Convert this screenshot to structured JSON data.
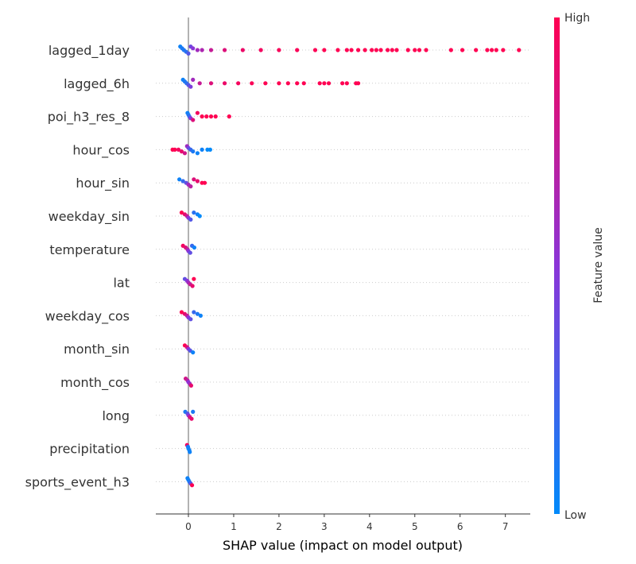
{
  "chart_data": {
    "type": "scatter",
    "subtype": "shap-beeswarm",
    "xlabel": "SHAP value (impact on model output)",
    "xlim": [
      -0.72,
      7.55
    ],
    "xticks": [
      0,
      1,
      2,
      3,
      4,
      5,
      6,
      7
    ],
    "zero_line": true,
    "grid": "dotted row guides",
    "colorbar": {
      "label": "Feature value",
      "high_label": "High",
      "low_label": "Low",
      "high_color": "#ff0052",
      "mid_color": "#8a35d8",
      "low_color": "#008afa",
      "position": "right"
    },
    "features": [
      {
        "name": "lagged_1day",
        "points": [
          {
            "x": -0.18,
            "v": 0.05
          },
          {
            "x": -0.14,
            "v": 0.1
          },
          {
            "x": -0.1,
            "v": 0.1
          },
          {
            "x": -0.05,
            "v": 0.15
          },
          {
            "x": 0.0,
            "v": 0.3
          },
          {
            "x": 0.05,
            "v": 0.4
          },
          {
            "x": 0.1,
            "v": 0.5
          },
          {
            "x": 0.2,
            "v": 0.6
          },
          {
            "x": 0.3,
            "v": 0.65
          },
          {
            "x": 0.5,
            "v": 0.75
          },
          {
            "x": 0.8,
            "v": 0.85
          },
          {
            "x": 1.2,
            "v": 0.92
          },
          {
            "x": 1.6,
            "v": 0.95
          },
          {
            "x": 2.0,
            "v": 0.97
          },
          {
            "x": 2.4,
            "v": 0.98
          },
          {
            "x": 2.8,
            "v": 0.99
          },
          {
            "x": 3.0,
            "v": 1
          },
          {
            "x": 3.3,
            "v": 1
          },
          {
            "x": 3.5,
            "v": 1
          },
          {
            "x": 3.6,
            "v": 1
          },
          {
            "x": 3.75,
            "v": 1
          },
          {
            "x": 3.9,
            "v": 1
          },
          {
            "x": 4.05,
            "v": 1
          },
          {
            "x": 4.15,
            "v": 1
          },
          {
            "x": 4.25,
            "v": 1
          },
          {
            "x": 4.4,
            "v": 1
          },
          {
            "x": 4.5,
            "v": 1
          },
          {
            "x": 4.6,
            "v": 1
          },
          {
            "x": 4.85,
            "v": 1
          },
          {
            "x": 5.0,
            "v": 1
          },
          {
            "x": 5.1,
            "v": 1
          },
          {
            "x": 5.25,
            "v": 1
          },
          {
            "x": 5.8,
            "v": 1
          },
          {
            "x": 6.05,
            "v": 1
          },
          {
            "x": 6.35,
            "v": 1
          },
          {
            "x": 6.6,
            "v": 1
          },
          {
            "x": 6.7,
            "v": 1
          },
          {
            "x": 6.8,
            "v": 1
          },
          {
            "x": 6.95,
            "v": 1
          },
          {
            "x": 7.3,
            "v": 1
          }
        ]
      },
      {
        "name": "lagged_6h",
        "points": [
          {
            "x": -0.12,
            "v": 0.05
          },
          {
            "x": -0.08,
            "v": 0.1
          },
          {
            "x": -0.04,
            "v": 0.15
          },
          {
            "x": 0.0,
            "v": 0.3
          },
          {
            "x": 0.05,
            "v": 0.45
          },
          {
            "x": 0.1,
            "v": 0.6
          },
          {
            "x": 0.25,
            "v": 0.75
          },
          {
            "x": 0.5,
            "v": 0.85
          },
          {
            "x": 0.8,
            "v": 0.92
          },
          {
            "x": 1.1,
            "v": 0.96
          },
          {
            "x": 1.4,
            "v": 0.98
          },
          {
            "x": 1.7,
            "v": 1
          },
          {
            "x": 2.0,
            "v": 1
          },
          {
            "x": 2.2,
            "v": 1
          },
          {
            "x": 2.4,
            "v": 1
          },
          {
            "x": 2.55,
            "v": 1
          },
          {
            "x": 2.9,
            "v": 1
          },
          {
            "x": 3.0,
            "v": 1
          },
          {
            "x": 3.1,
            "v": 1
          },
          {
            "x": 3.4,
            "v": 1
          },
          {
            "x": 3.5,
            "v": 1
          },
          {
            "x": 3.7,
            "v": 1
          },
          {
            "x": 3.75,
            "v": 1
          }
        ]
      },
      {
        "name": "poi_h3_res_8",
        "points": [
          {
            "x": -0.02,
            "v": 0.05
          },
          {
            "x": 0.0,
            "v": 0.1
          },
          {
            "x": 0.02,
            "v": 0.2
          },
          {
            "x": 0.05,
            "v": 0.5
          },
          {
            "x": 0.1,
            "v": 0.85
          },
          {
            "x": 0.2,
            "v": 0.95
          },
          {
            "x": 0.3,
            "v": 1
          },
          {
            "x": 0.4,
            "v": 1
          },
          {
            "x": 0.5,
            "v": 1
          },
          {
            "x": 0.6,
            "v": 1
          },
          {
            "x": 0.9,
            "v": 1
          }
        ]
      },
      {
        "name": "hour_cos",
        "points": [
          {
            "x": -0.35,
            "v": 1
          },
          {
            "x": -0.3,
            "v": 1
          },
          {
            "x": -0.22,
            "v": 0.95
          },
          {
            "x": -0.15,
            "v": 0.9
          },
          {
            "x": -0.08,
            "v": 0.8
          },
          {
            "x": -0.03,
            "v": 0.6
          },
          {
            "x": 0.0,
            "v": 0.4
          },
          {
            "x": 0.05,
            "v": 0.2
          },
          {
            "x": 0.1,
            "v": 0.1
          },
          {
            "x": 0.2,
            "v": 0.05
          },
          {
            "x": 0.3,
            "v": 0.05
          },
          {
            "x": 0.42,
            "v": 0.0
          },
          {
            "x": 0.48,
            "v": 0.0
          }
        ]
      },
      {
        "name": "hour_sin",
        "points": [
          {
            "x": -0.2,
            "v": 0.05
          },
          {
            "x": -0.12,
            "v": 0.2
          },
          {
            "x": -0.05,
            "v": 0.35
          },
          {
            "x": 0.0,
            "v": 0.6
          },
          {
            "x": 0.05,
            "v": 0.7
          },
          {
            "x": 0.12,
            "v": 0.85
          },
          {
            "x": 0.2,
            "v": 0.9
          },
          {
            "x": 0.3,
            "v": 1.0
          },
          {
            "x": 0.36,
            "v": 1.0
          }
        ]
      },
      {
        "name": "weekday_sin",
        "points": [
          {
            "x": -0.15,
            "v": 1.0
          },
          {
            "x": -0.08,
            "v": 0.9
          },
          {
            "x": -0.03,
            "v": 0.75
          },
          {
            "x": 0.0,
            "v": 0.5
          },
          {
            "x": 0.05,
            "v": 0.3
          },
          {
            "x": 0.12,
            "v": 0.15
          },
          {
            "x": 0.2,
            "v": 0.05
          },
          {
            "x": 0.25,
            "v": 0.0
          }
        ]
      },
      {
        "name": "temperature",
        "points": [
          {
            "x": -0.12,
            "v": 0.95
          },
          {
            "x": -0.06,
            "v": 0.85
          },
          {
            "x": -0.02,
            "v": 0.7
          },
          {
            "x": 0.0,
            "v": 0.5
          },
          {
            "x": 0.04,
            "v": 0.35
          },
          {
            "x": 0.08,
            "v": 0.2
          },
          {
            "x": 0.13,
            "v": 0.05
          }
        ]
      },
      {
        "name": "lat",
        "points": [
          {
            "x": -0.08,
            "v": 0.35
          },
          {
            "x": -0.03,
            "v": 0.5
          },
          {
            "x": 0.0,
            "v": 0.6
          },
          {
            "x": 0.04,
            "v": 0.75
          },
          {
            "x": 0.09,
            "v": 0.9
          },
          {
            "x": 0.12,
            "v": 1.0
          }
        ]
      },
      {
        "name": "weekday_cos",
        "points": [
          {
            "x": -0.15,
            "v": 1.0
          },
          {
            "x": -0.08,
            "v": 0.9
          },
          {
            "x": -0.03,
            "v": 0.75
          },
          {
            "x": 0.0,
            "v": 0.5
          },
          {
            "x": 0.05,
            "v": 0.35
          },
          {
            "x": 0.12,
            "v": 0.2
          },
          {
            "x": 0.2,
            "v": 0.1
          },
          {
            "x": 0.27,
            "v": 0.05
          }
        ]
      },
      {
        "name": "month_sin",
        "points": [
          {
            "x": -0.08,
            "v": 1.0
          },
          {
            "x": -0.03,
            "v": 0.85
          },
          {
            "x": 0.0,
            "v": 0.5
          },
          {
            "x": 0.04,
            "v": 0.3
          },
          {
            "x": 0.1,
            "v": 0.05
          }
        ]
      },
      {
        "name": "month_cos",
        "points": [
          {
            "x": -0.06,
            "v": 0.8
          },
          {
            "x": -0.02,
            "v": 0.7
          },
          {
            "x": 0.0,
            "v": 0.5
          },
          {
            "x": 0.03,
            "v": 0.6
          },
          {
            "x": 0.06,
            "v": 0.9
          }
        ]
      },
      {
        "name": "long",
        "points": [
          {
            "x": -0.07,
            "v": 0.1
          },
          {
            "x": -0.02,
            "v": 0.3
          },
          {
            "x": 0.0,
            "v": 0.5
          },
          {
            "x": 0.03,
            "v": 0.8
          },
          {
            "x": 0.07,
            "v": 0.9
          },
          {
            "x": 0.1,
            "v": 0.1
          }
        ]
      },
      {
        "name": "precipitation",
        "points": [
          {
            "x": -0.03,
            "v": 0.95
          },
          {
            "x": -0.01,
            "v": 0.1
          },
          {
            "x": 0.0,
            "v": 0.05
          },
          {
            "x": 0.02,
            "v": 0.05
          },
          {
            "x": 0.03,
            "v": 0.05
          }
        ]
      },
      {
        "name": "sports_event_h3",
        "points": [
          {
            "x": -0.02,
            "v": 0.05
          },
          {
            "x": 0.0,
            "v": 0.05
          },
          {
            "x": 0.02,
            "v": 0.1
          },
          {
            "x": 0.05,
            "v": 0.3
          },
          {
            "x": 0.08,
            "v": 1.0
          }
        ]
      }
    ]
  }
}
